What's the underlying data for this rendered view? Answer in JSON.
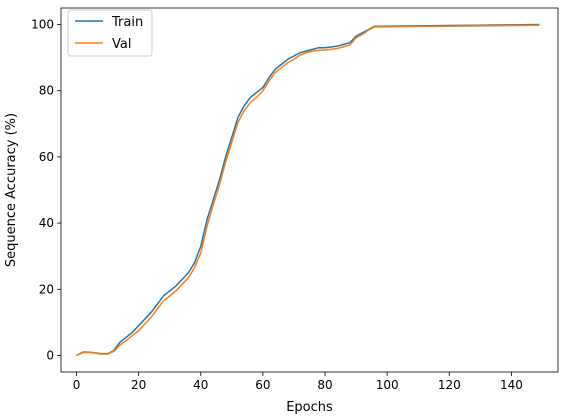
{
  "chart_data": {
    "type": "line",
    "xlabel": "Epochs",
    "ylabel": "Sequence Accuracy (%)",
    "xlim": [
      -5,
      155
    ],
    "ylim": [
      -5,
      105
    ],
    "xticks": [
      0,
      20,
      40,
      60,
      80,
      100,
      120,
      140
    ],
    "yticks": [
      0,
      20,
      40,
      60,
      80,
      100
    ],
    "grid": false,
    "legend_position": "upper-left",
    "series": [
      {
        "name": "Train",
        "color": "#1f77b4",
        "x": [
          0,
          2,
          4,
          6,
          8,
          10,
          12,
          14,
          16,
          18,
          20,
          22,
          24,
          26,
          28,
          30,
          32,
          34,
          36,
          38,
          40,
          42,
          44,
          46,
          48,
          50,
          52,
          54,
          56,
          58,
          60,
          62,
          64,
          66,
          68,
          70,
          72,
          74,
          76,
          78,
          80,
          82,
          84,
          86,
          88,
          90,
          92,
          94,
          96,
          100,
          110,
          120,
          130,
          140,
          149
        ],
        "values": [
          0,
          1,
          1,
          0.8,
          0.5,
          0.5,
          1.5,
          4,
          5.5,
          7,
          9,
          11,
          13,
          15.5,
          18,
          19.5,
          21,
          23,
          25,
          28,
          33,
          41,
          47,
          53,
          60,
          66,
          72,
          75.5,
          78,
          79.5,
          81,
          84,
          86.5,
          88,
          89.5,
          90.5,
          91.5,
          92,
          92.5,
          93,
          93,
          93.2,
          93.5,
          94,
          94.5,
          96.5,
          97.5,
          98.5,
          99.5,
          99.5,
          99.6,
          99.7,
          99.8,
          99.9,
          100
        ]
      },
      {
        "name": "Val",
        "color": "#ff7f0e",
        "x": [
          0,
          2,
          4,
          6,
          8,
          10,
          12,
          14,
          16,
          18,
          20,
          22,
          24,
          26,
          28,
          30,
          32,
          34,
          36,
          38,
          40,
          42,
          44,
          46,
          48,
          50,
          52,
          54,
          56,
          58,
          60,
          62,
          64,
          66,
          68,
          70,
          72,
          74,
          76,
          78,
          80,
          82,
          84,
          86,
          88,
          90,
          92,
          94,
          96,
          100,
          110,
          120,
          130,
          140,
          149
        ],
        "values": [
          0,
          0.8,
          0.9,
          0.7,
          0.4,
          0.4,
          1.2,
          3.2,
          4.5,
          6,
          7.5,
          9.5,
          11.5,
          14,
          16.5,
          18,
          19.5,
          21.5,
          23.5,
          26.5,
          31,
          39,
          45.5,
          51.5,
          58.5,
          64.5,
          70.5,
          74,
          76.5,
          78,
          80,
          83,
          85.5,
          87,
          88.5,
          89.5,
          90.8,
          91.5,
          92,
          92.2,
          92.3,
          92.5,
          92.8,
          93.3,
          93.8,
          96,
          97,
          98.3,
          99.3,
          99.3,
          99.4,
          99.5,
          99.6,
          99.7,
          99.8
        ]
      }
    ]
  }
}
